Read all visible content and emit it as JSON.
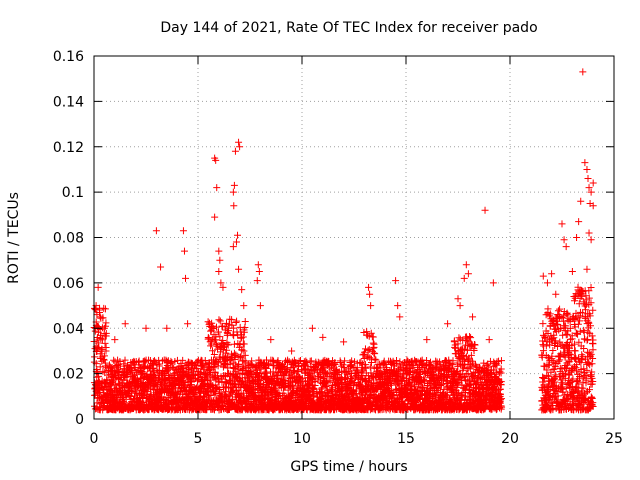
{
  "chart_data": {
    "type": "scatter",
    "title": "Day 144 of 2021, Rate Of TEC Index for receiver pado",
    "xlabel": "GPS time / hours",
    "ylabel": "ROTI / TECUs",
    "xlim": [
      0,
      25
    ],
    "ylim": [
      0,
      0.16
    ],
    "xticks": [
      0,
      5,
      10,
      15,
      20,
      25
    ],
    "yticks": [
      0,
      0.02,
      0.04,
      0.06,
      0.08,
      0.1,
      0.12,
      0.14,
      0.16
    ],
    "ytick_labels": [
      "0",
      "0.02",
      "0.04",
      "0.06",
      "0.08",
      "0.1",
      "0.12",
      "0.14",
      "0.16"
    ],
    "xtick_labels": [
      "0",
      "5",
      "10",
      "15",
      "20",
      "25"
    ],
    "grid": true,
    "marker": "+",
    "color": "#ff0000",
    "data_gap": [
      19.6,
      21.5
    ],
    "series": [
      {
        "values": [
          [
            0.1,
            0.05
          ],
          [
            0.2,
            0.058
          ],
          [
            0.3,
            0.045
          ],
          [
            0.5,
            0.04
          ],
          [
            1.0,
            0.035
          ],
          [
            1.5,
            0.042
          ],
          [
            2.5,
            0.04
          ],
          [
            3.0,
            0.083
          ],
          [
            3.2,
            0.067
          ],
          [
            3.5,
            0.04
          ],
          [
            4.3,
            0.083
          ],
          [
            4.35,
            0.074
          ],
          [
            4.4,
            0.062
          ],
          [
            4.5,
            0.042
          ],
          [
            5.8,
            0.115
          ],
          [
            5.85,
            0.114
          ],
          [
            5.9,
            0.102
          ],
          [
            5.8,
            0.089
          ],
          [
            6.0,
            0.074
          ],
          [
            6.05,
            0.07
          ],
          [
            6.0,
            0.065
          ],
          [
            6.1,
            0.06
          ],
          [
            6.2,
            0.058
          ],
          [
            6.8,
            0.118
          ],
          [
            6.95,
            0.122
          ],
          [
            7.0,
            0.12
          ],
          [
            6.75,
            0.103
          ],
          [
            6.7,
            0.1
          ],
          [
            6.72,
            0.094
          ],
          [
            6.9,
            0.081
          ],
          [
            6.85,
            0.078
          ],
          [
            6.7,
            0.076
          ],
          [
            6.95,
            0.066
          ],
          [
            7.1,
            0.057
          ],
          [
            7.2,
            0.05
          ],
          [
            7.9,
            0.068
          ],
          [
            7.95,
            0.065
          ],
          [
            8.0,
            0.05
          ],
          [
            7.85,
            0.061
          ],
          [
            8.5,
            0.035
          ],
          [
            9.5,
            0.03
          ],
          [
            10.5,
            0.04
          ],
          [
            11.0,
            0.036
          ],
          [
            12.0,
            0.034
          ],
          [
            13.2,
            0.058
          ],
          [
            13.25,
            0.055
          ],
          [
            13.3,
            0.05
          ],
          [
            14.5,
            0.061
          ],
          [
            14.6,
            0.05
          ],
          [
            14.7,
            0.045
          ],
          [
            16.0,
            0.035
          ],
          [
            17.0,
            0.042
          ],
          [
            17.5,
            0.053
          ],
          [
            17.6,
            0.05
          ],
          [
            17.8,
            0.062
          ],
          [
            17.9,
            0.068
          ],
          [
            18.0,
            0.064
          ],
          [
            18.2,
            0.045
          ],
          [
            18.8,
            0.092
          ],
          [
            19.2,
            0.06
          ],
          [
            19.0,
            0.035
          ],
          [
            21.6,
            0.063
          ],
          [
            21.8,
            0.06
          ],
          [
            22.0,
            0.064
          ],
          [
            22.2,
            0.055
          ],
          [
            22.5,
            0.086
          ],
          [
            22.6,
            0.079
          ],
          [
            22.7,
            0.076
          ],
          [
            23.0,
            0.065
          ],
          [
            23.2,
            0.08
          ],
          [
            23.3,
            0.087
          ],
          [
            23.4,
            0.096
          ],
          [
            23.5,
            0.153
          ],
          [
            23.6,
            0.113
          ],
          [
            23.7,
            0.11
          ],
          [
            23.75,
            0.106
          ],
          [
            23.8,
            0.102
          ],
          [
            23.85,
            0.095
          ],
          [
            23.9,
            0.1
          ],
          [
            23.8,
            0.082
          ],
          [
            23.7,
            0.066
          ],
          [
            23.9,
            0.079
          ],
          [
            24.0,
            0.104
          ],
          [
            24.0,
            0.094
          ]
        ]
      }
    ]
  }
}
